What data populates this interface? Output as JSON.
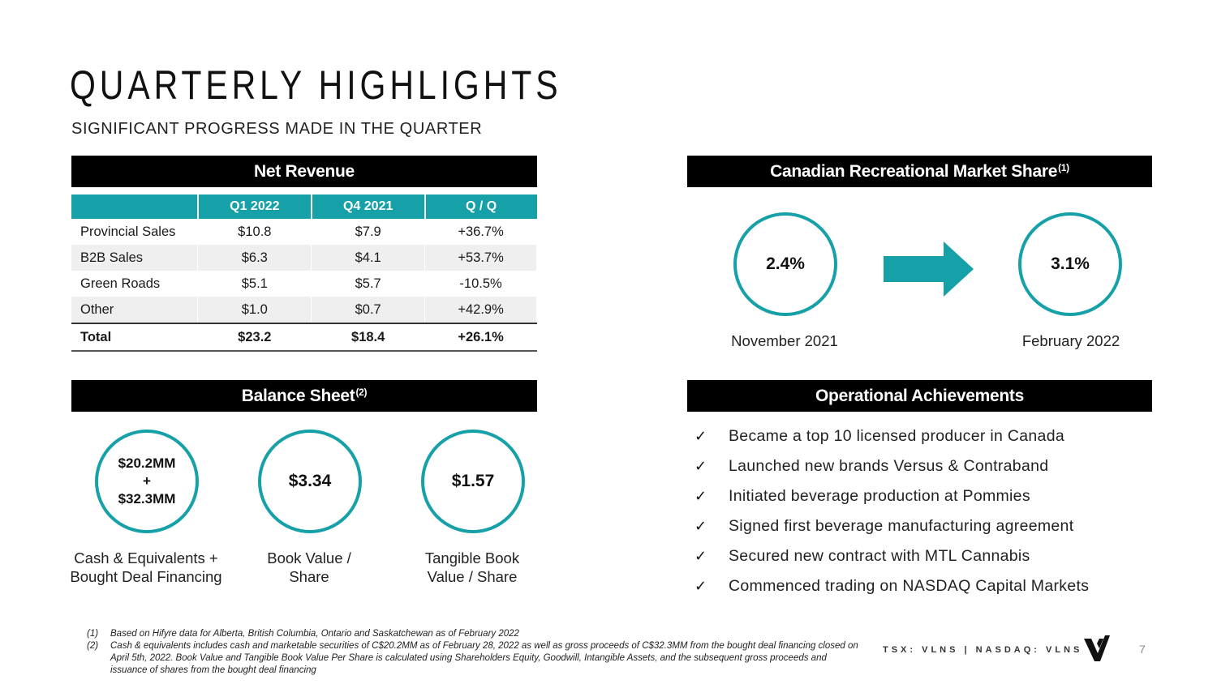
{
  "title": "QUARTERLY HIGHLIGHTS",
  "subtitle": "SIGNIFICANT PROGRESS MADE IN THE QUARTER",
  "net_revenue": {
    "heading": "Net Revenue",
    "columns": [
      "",
      "Q1 2022",
      "Q4 2021",
      "Q / Q"
    ],
    "rows": [
      {
        "label": "Provincial Sales",
        "q1": "$10.8",
        "q4": "$7.9",
        "qq": "+36.7%"
      },
      {
        "label": "B2B Sales",
        "q1": "$6.3",
        "q4": "$4.1",
        "qq": "+53.7%"
      },
      {
        "label": "Green Roads",
        "q1": "$5.1",
        "q4": "$5.7",
        "qq": "-10.5%"
      },
      {
        "label": "Other",
        "q1": "$1.0",
        "q4": "$0.7",
        "qq": "+42.9%"
      }
    ],
    "total": {
      "label": "Total",
      "q1": "$23.2",
      "q4": "$18.4",
      "qq": "+26.1%"
    }
  },
  "market_share": {
    "heading": "Canadian Recreational Market Share",
    "heading_note": "(1)",
    "before": {
      "value": "2.4%",
      "label": "November 2021"
    },
    "after": {
      "value": "3.1%",
      "label": "February 2022"
    }
  },
  "balance_sheet": {
    "heading": "Balance Sheet",
    "heading_note": "(2)",
    "items": [
      {
        "line1": "$20.2MM",
        "line2": "+",
        "line3": "$32.3MM",
        "caption": "Cash & Equivalents + Bought Deal Financing"
      },
      {
        "value": "$3.34",
        "caption": "Book Value / Share"
      },
      {
        "value": "$1.57",
        "caption": "Tangible Book Value / Share"
      }
    ]
  },
  "operational": {
    "heading": "Operational Achievements",
    "check": "✓",
    "items": [
      "Became a top 10 licensed producer in Canada",
      "Launched new brands Versus & Contraband",
      "Initiated beverage production at Pommies",
      "Signed first beverage manufacturing agreement",
      "Secured new contract with MTL Cannabis",
      "Commenced trading on NASDAQ Capital Markets"
    ]
  },
  "footnotes": [
    {
      "num": "(1)",
      "text": "Based on Hifyre data for Alberta, British Columbia, Ontario and Saskatchewan as of February 2022"
    },
    {
      "num": "(2)",
      "text": "Cash & equivalents includes cash and marketable securities of C$20.2MM as of February 28, 2022 as well as gross proceeds of C$32.3MM from the bought deal financing closed on April 5th, 2022. Book Value and Tangible Book Value Per Share is calculated using Shareholders Equity, Goodwill, Intangible Assets, and the subsequent gross proceeds and issuance of shares from the bought deal financing"
    }
  ],
  "ticker": "TSX: VLNS | NASDAQ: VLNS",
  "logo_icon": "versus-logo-icon",
  "arrow_icon": "right-arrow-icon",
  "accent_color": "#16a0a8",
  "page_number": "7"
}
